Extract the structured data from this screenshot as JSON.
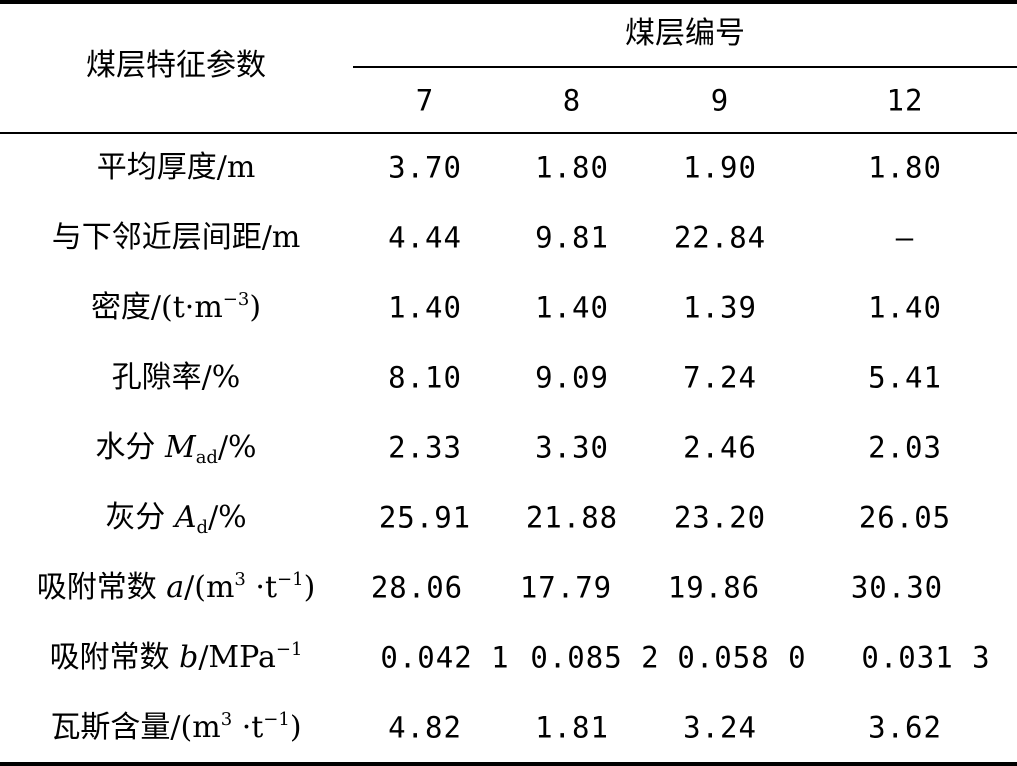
{
  "header": {
    "left": "煤层特征参数",
    "group": "煤层编号",
    "columns": [
      "7",
      "8",
      "9",
      "12"
    ]
  },
  "rows": [
    {
      "label": {
        "main": "平均厚度/m"
      },
      "values": [
        "3.70",
        "1.80",
        "1.90",
        "1.80"
      ]
    },
    {
      "label": {
        "main": "与下邻近层间距/m"
      },
      "values": [
        "4.44",
        "9.81",
        "22.84",
        "—"
      ]
    },
    {
      "label": {
        "pre": "密度/(t·m",
        "sup": "−3",
        "post": ")"
      },
      "values": [
        "1.40",
        "1.40",
        "1.39",
        "1.40"
      ]
    },
    {
      "label": {
        "main": "孔隙率/%"
      },
      "values": [
        "8.10",
        "9.09",
        "7.24",
        "5.41"
      ]
    },
    {
      "label": {
        "pre": "水分 ",
        "ital": "M",
        "sub": "ad",
        "post": "/%"
      },
      "values": [
        "2.33",
        "3.30",
        "2.46",
        "2.03"
      ]
    },
    {
      "label": {
        "pre": "灰分 ",
        "ital": "A",
        "sub": "d",
        "post": "/%"
      },
      "values": [
        "25.91",
        "21.88",
        "23.20",
        "26.05"
      ]
    },
    {
      "label": {
        "pre": "吸附常数 ",
        "ital": "a",
        "mid": "/(m",
        "sup": "3",
        "mid2": " ·t",
        "sup2": "−1",
        "post": ")"
      },
      "values": [
        "28.06",
        "17.79",
        "19.86",
        "30.30"
      ]
    },
    {
      "label": {
        "pre": "吸附常数 ",
        "ital": "b",
        "mid": "/MPa",
        "sup": "−1"
      },
      "values": [
        "0.042 1",
        "0.085 2",
        "0.058 0",
        "0.031 3"
      ]
    },
    {
      "label": {
        "pre": "瓦斯含量/(m",
        "sup": "3",
        "mid": " ·t",
        "sup2": "−1",
        "post": ")"
      },
      "values": [
        "4.82",
        "1.81",
        "3.24",
        "3.62"
      ]
    }
  ]
}
